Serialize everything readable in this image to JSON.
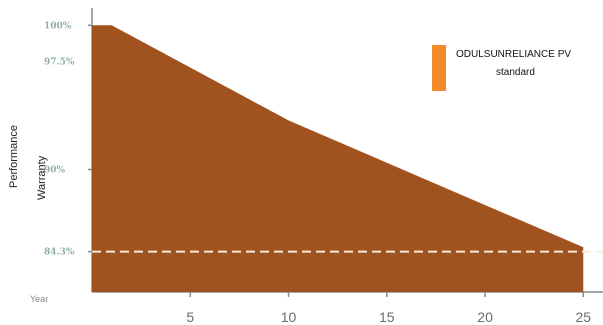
{
  "chart_data": {
    "type": "area",
    "title": "",
    "xlabel": "Year",
    "ylabel_lines": [
      "Performance",
      "Warranty"
    ],
    "x": [
      0,
      1,
      10,
      25
    ],
    "series": [
      {
        "name": "ODULSUNRELIANCE PV",
        "values": [
          100,
          100,
          93.4,
          84.6
        ]
      },
      {
        "name": "standard",
        "values": [
          84.3,
          84.3,
          84.3,
          84.3
        ]
      }
    ],
    "xticks": [
      "5",
      "10",
      "15",
      "20",
      "25"
    ],
    "xtick_values": [
      5,
      10,
      15,
      20,
      25
    ],
    "yticks": [
      "100%",
      "97.5%",
      "90%",
      "84.3%"
    ],
    "ytick_values": [
      100,
      97.5,
      90,
      84.3
    ],
    "xlim": [
      0,
      26
    ],
    "ylim": [
      81.5,
      101.2
    ],
    "legend": {
      "placement": "top-right",
      "labels": [
        "ODULSUNRELIANCE PV",
        "standard"
      ]
    },
    "colors": {
      "area": "#a0521f",
      "standard_line": "#f5ead8",
      "legend_swatch": "#f58a2c",
      "axis": "#8a8a8a",
      "y_tick_text": "#8fb1a0"
    },
    "grid": false
  }
}
